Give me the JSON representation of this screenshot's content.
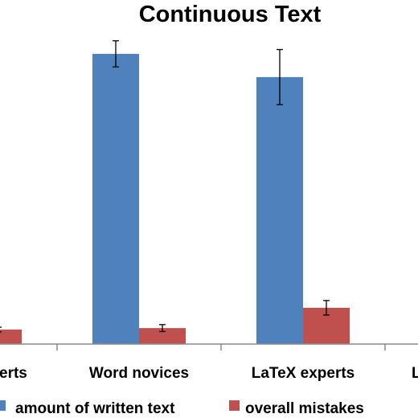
{
  "chart_data": {
    "type": "bar",
    "title": "Continuous Text",
    "categories": [
      "Word experts",
      "Word novices",
      "LaTeX experts",
      "LaTeX novices"
    ],
    "visible_tick_labels": [
      "erts",
      "Word novices",
      "LaTeX experts",
      "L"
    ],
    "xlabel": "",
    "ylabel": "",
    "ylim": [
      0,
      100
    ],
    "grid": false,
    "legend_position": "bottom",
    "series": [
      {
        "name": "amount of written text",
        "color": "#4f81bd",
        "values": [
          null,
          100,
          92,
          null
        ],
        "errors": [
          null,
          4.5,
          9.5,
          null
        ]
      },
      {
        "name": "overall mistakes",
        "color": "#c0504d",
        "values": [
          5,
          5.5,
          12.5,
          null
        ],
        "errors": [
          0.8,
          1.2,
          2.5,
          null
        ]
      }
    ]
  }
}
